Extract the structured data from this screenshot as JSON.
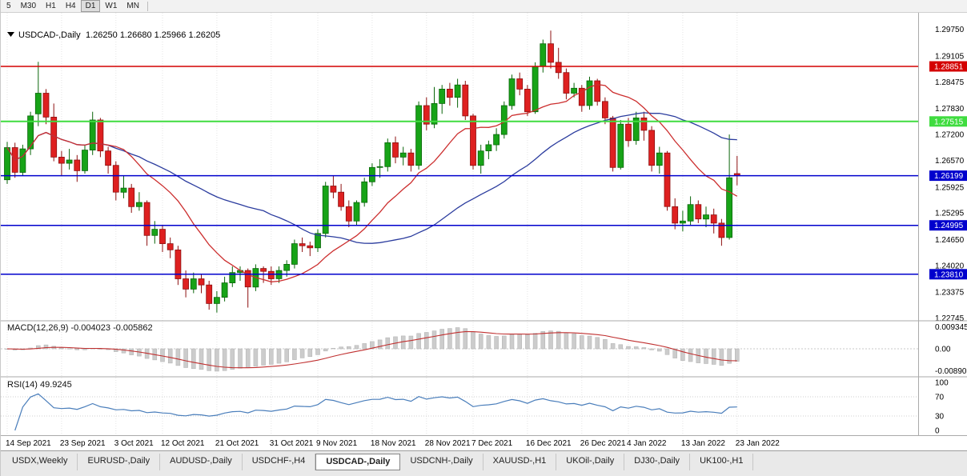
{
  "toolbar": {
    "timeframes": [
      "5",
      "M30",
      "H1",
      "H4",
      "D1",
      "W1",
      "MN"
    ],
    "active": "D1"
  },
  "labels": {
    "title": "USDCAD-,Daily",
    "ohlc": "1.26250 1.26680 1.25966 1.26205",
    "macd": "MACD(12,26,9) -0.004023 -0.005862",
    "rsi": "RSI(14) 49.9245"
  },
  "colors": {
    "up": "#17a317",
    "up_border": "#0a660a",
    "down": "#de2020",
    "down_border": "#8d1010",
    "macd_hist": "#cccccc",
    "macd_hist_border": "#b0b0b0",
    "macd_signal": "#c03030",
    "rsi_line": "#4a7ebb",
    "grid": "#e4e4e4",
    "divider": "#aaaaaa",
    "axis_text": "#000000"
  },
  "chart_data": {
    "type": "candlestick",
    "symbol": "USDCAD-",
    "timeframe": "Daily",
    "current_bar": {
      "open": 1.2625,
      "high": 1.2668,
      "low": 1.25966,
      "close": 1.26205
    },
    "y_axis": {
      "range": [
        1.227,
        1.3015
      ],
      "ticks": [
        "1.29750",
        "1.29105",
        "1.28475",
        "1.27830",
        "1.27200",
        "1.26570",
        "1.25925",
        "1.25295",
        "1.24650",
        "1.24020",
        "1.23375",
        "1.22745"
      ]
    },
    "x_axis": {
      "ticks": [
        {
          "label": "14 Sep 2021",
          "index": 0
        },
        {
          "label": "23 Sep 2021",
          "index": 7
        },
        {
          "label": "3 Oct 2021",
          "index": 14
        },
        {
          "label": "12 Oct 2021",
          "index": 20
        },
        {
          "label": "21 Oct 2021",
          "index": 27
        },
        {
          "label": "31 Oct 2021",
          "index": 34
        },
        {
          "label": "9 Nov 2021",
          "index": 40
        },
        {
          "label": "18 Nov 2021",
          "index": 47
        },
        {
          "label": "28 Nov 2021",
          "index": 54
        },
        {
          "label": "7 Dec 2021",
          "index": 60
        },
        {
          "label": "16 Dec 2021",
          "index": 67
        },
        {
          "label": "26 Dec 2021",
          "index": 74
        },
        {
          "label": "4 Jan 2022",
          "index": 80
        },
        {
          "label": "13 Jan 2022",
          "index": 87
        },
        {
          "label": "23 Jan 2022",
          "index": 94
        }
      ]
    },
    "horizontal_levels": [
      {
        "value": 1.28851,
        "label": "1.28851",
        "color": "#d40000",
        "width": 1.5
      },
      {
        "value": 1.27515,
        "label": "1.27515",
        "color": "#3fdc3f",
        "width": 2
      },
      {
        "value": 1.26199,
        "label": "1.26199",
        "color": "#0000cd",
        "width": 1.5
      },
      {
        "value": 1.24995,
        "label": "1.24995",
        "color": "#0000cd",
        "width": 1.5
      },
      {
        "value": 1.2381,
        "label": "1.23810",
        "color": "#0000cd",
        "width": 1.5
      }
    ],
    "moving_averages": [
      {
        "name": "fast",
        "period": 13,
        "color": "#cc2e2e"
      },
      {
        "name": "slow",
        "period": 34,
        "color": "#2b3c9e"
      }
    ],
    "macd": {
      "params": [
        12,
        26,
        9
      ],
      "value": -0.004023,
      "signal": -0.005862,
      "axis": [
        "0.009345",
        "0.00",
        "-0.008902"
      ]
    },
    "rsi": {
      "period": 14,
      "value": 49.9245,
      "axis": [
        "100",
        "70",
        "30",
        "0"
      ],
      "levels": [
        70,
        30
      ]
    },
    "candles": [
      [
        1.261,
        1.2702,
        1.26,
        1.2688
      ],
      [
        1.2688,
        1.27,
        1.2615,
        1.2628
      ],
      [
        1.2628,
        1.2695,
        1.262,
        1.2685
      ],
      [
        1.2685,
        1.2775,
        1.267,
        1.2765
      ],
      [
        1.277,
        1.2896,
        1.274,
        1.282
      ],
      [
        1.282,
        1.283,
        1.2745,
        1.2762
      ],
      [
        1.2762,
        1.2795,
        1.2655,
        1.2665
      ],
      [
        1.2665,
        1.268,
        1.262,
        1.265
      ],
      [
        1.265,
        1.2685,
        1.2635,
        1.2658
      ],
      [
        1.2658,
        1.267,
        1.2605,
        1.2632
      ],
      [
        1.2632,
        1.2695,
        1.2625,
        1.2682
      ],
      [
        1.2682,
        1.2775,
        1.267,
        1.2755
      ],
      [
        1.2755,
        1.276,
        1.2665,
        1.268
      ],
      [
        1.268,
        1.269,
        1.2625,
        1.2645
      ],
      [
        1.2645,
        1.2655,
        1.256,
        1.258
      ],
      [
        1.258,
        1.262,
        1.2565,
        1.259
      ],
      [
        1.259,
        1.26,
        1.253,
        1.2545
      ],
      [
        1.2545,
        1.258,
        1.2535,
        1.2555
      ],
      [
        1.2555,
        1.256,
        1.245,
        1.2475
      ],
      [
        1.2475,
        1.251,
        1.2455,
        1.249
      ],
      [
        1.249,
        1.25,
        1.2435,
        1.2455
      ],
      [
        1.2455,
        1.247,
        1.242,
        1.244
      ],
      [
        1.244,
        1.245,
        1.2355,
        1.237
      ],
      [
        1.237,
        1.239,
        1.2325,
        1.2345
      ],
      [
        1.2345,
        1.2385,
        1.2335,
        1.237
      ],
      [
        1.237,
        1.238,
        1.2335,
        1.2355
      ],
      [
        1.2355,
        1.2365,
        1.2295,
        1.231
      ],
      [
        1.231,
        1.234,
        1.2288,
        1.2325
      ],
      [
        1.2325,
        1.2375,
        1.2315,
        1.236
      ],
      [
        1.236,
        1.24,
        1.235,
        1.2385
      ],
      [
        1.2385,
        1.24,
        1.2365,
        1.239
      ],
      [
        1.239,
        1.2395,
        1.23,
        1.235
      ],
      [
        1.235,
        1.2405,
        1.234,
        1.2395
      ],
      [
        1.2395,
        1.24,
        1.236,
        1.2388
      ],
      [
        1.2388,
        1.24,
        1.2355,
        1.237
      ],
      [
        1.237,
        1.24,
        1.236,
        1.239
      ],
      [
        1.239,
        1.2415,
        1.2375,
        1.2405
      ],
      [
        1.2405,
        1.2465,
        1.2395,
        1.2455
      ],
      [
        1.2455,
        1.247,
        1.2435,
        1.245
      ],
      [
        1.245,
        1.246,
        1.2425,
        1.2445
      ],
      [
        1.2445,
        1.249,
        1.2435,
        1.248
      ],
      [
        1.248,
        1.2605,
        1.247,
        1.2595
      ],
      [
        1.2595,
        1.262,
        1.2565,
        1.258
      ],
      [
        1.258,
        1.26,
        1.2535,
        1.2545
      ],
      [
        1.2545,
        1.256,
        1.2495,
        1.251
      ],
      [
        1.251,
        1.256,
        1.25,
        1.2555
      ],
      [
        1.2555,
        1.2615,
        1.2545,
        1.2605
      ],
      [
        1.2605,
        1.265,
        1.2595,
        1.264
      ],
      [
        1.264,
        1.266,
        1.2615,
        1.2642
      ],
      [
        1.2642,
        1.271,
        1.263,
        1.27
      ],
      [
        1.27,
        1.2715,
        1.265,
        1.2665
      ],
      [
        1.2665,
        1.269,
        1.2645,
        1.2675
      ],
      [
        1.2675,
        1.2685,
        1.263,
        1.2645
      ],
      [
        1.2645,
        1.28,
        1.2635,
        1.279
      ],
      [
        1.279,
        1.281,
        1.273,
        1.2745
      ],
      [
        1.2745,
        1.2835,
        1.2735,
        1.2795
      ],
      [
        1.2795,
        1.284,
        1.277,
        1.283
      ],
      [
        1.283,
        1.2845,
        1.279,
        1.281
      ],
      [
        1.281,
        1.2855,
        1.2785,
        1.284
      ],
      [
        1.284,
        1.285,
        1.2755,
        1.2765
      ],
      [
        1.2765,
        1.277,
        1.2635,
        1.2645
      ],
      [
        1.2645,
        1.2695,
        1.2625,
        1.268
      ],
      [
        1.268,
        1.2705,
        1.266,
        1.2695
      ],
      [
        1.2695,
        1.2735,
        1.268,
        1.272
      ],
      [
        1.272,
        1.28,
        1.271,
        1.279
      ],
      [
        1.279,
        1.2865,
        1.278,
        1.2855
      ],
      [
        1.2855,
        1.287,
        1.2815,
        1.283
      ],
      [
        1.283,
        1.284,
        1.2765,
        1.2775
      ],
      [
        1.2775,
        1.2895,
        1.277,
        1.2885
      ],
      [
        1.2885,
        1.295,
        1.287,
        1.294
      ],
      [
        1.294,
        1.2972,
        1.288,
        1.2895
      ],
      [
        1.2895,
        1.293,
        1.2855,
        1.287
      ],
      [
        1.287,
        1.288,
        1.2805,
        1.282
      ],
      [
        1.282,
        1.2845,
        1.281,
        1.2832
      ],
      [
        1.2832,
        1.284,
        1.2775,
        1.279
      ],
      [
        1.279,
        1.286,
        1.278,
        1.285
      ],
      [
        1.285,
        1.2855,
        1.279,
        1.28
      ],
      [
        1.28,
        1.281,
        1.2745,
        1.276
      ],
      [
        1.276,
        1.2765,
        1.263,
        1.264
      ],
      [
        1.264,
        1.2755,
        1.2635,
        1.2745
      ],
      [
        1.2745,
        1.276,
        1.269,
        1.2705
      ],
      [
        1.2705,
        1.2775,
        1.2695,
        1.276
      ],
      [
        1.276,
        1.2775,
        1.2705,
        1.273
      ],
      [
        1.273,
        1.274,
        1.263,
        1.2645
      ],
      [
        1.2645,
        1.269,
        1.2625,
        1.2675
      ],
      [
        1.2675,
        1.268,
        1.2535,
        1.2545
      ],
      [
        1.2545,
        1.2565,
        1.249,
        1.2505
      ],
      [
        1.2505,
        1.2535,
        1.2485,
        1.251
      ],
      [
        1.251,
        1.257,
        1.25,
        1.255
      ],
      [
        1.255,
        1.256,
        1.2505,
        1.2515
      ],
      [
        1.2515,
        1.2545,
        1.2495,
        1.2525
      ],
      [
        1.2525,
        1.254,
        1.248,
        1.2505
      ],
      [
        1.2505,
        1.2515,
        1.245,
        1.247
      ],
      [
        1.247,
        1.272,
        1.2465,
        1.2615
      ],
      [
        1.2625,
        1.2668,
        1.25966,
        1.26205
      ]
    ]
  },
  "tabs": {
    "items": [
      "USDX,Weekly",
      "EURUSD-,Daily",
      "AUDUSD-,Daily",
      "USDCHF-,H4",
      "USDCAD-,Daily",
      "USDCNH-,Daily",
      "XAUUSD-,H1",
      "UKOil-,Daily",
      "DJ30-,Daily",
      "UK100-,H1"
    ],
    "active": "USDCAD-,Daily"
  }
}
